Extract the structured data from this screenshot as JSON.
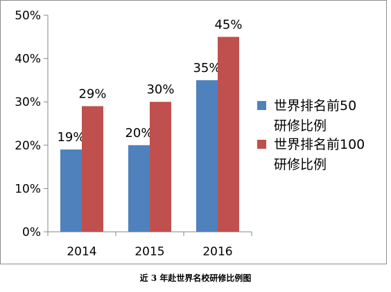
{
  "caption": "近 3 年赴世界名校研修比例图",
  "chart_data": {
    "type": "bar",
    "categories": [
      "2014",
      "2015",
      "2016"
    ],
    "series": [
      {
        "name": "世界排名前50研修比例",
        "legend_lines": [
          "世界排名前50",
          "研修比例"
        ],
        "values": [
          19,
          20,
          35
        ],
        "labels": [
          "19%",
          "20%",
          "35%"
        ],
        "color": "#4f81bd"
      },
      {
        "name": "世界排名前100研修比例",
        "legend_lines": [
          "世界排名前100",
          "研修比例"
        ],
        "values": [
          29,
          30,
          45
        ],
        "labels": [
          "29%",
          "30%",
          "45%"
        ],
        "color": "#c0504d"
      }
    ],
    "ylim": [
      0,
      50
    ],
    "yticks": [
      0,
      10,
      20,
      30,
      40,
      50
    ],
    "ytick_labels": [
      "0%",
      "10%",
      "20%",
      "30%",
      "40%",
      "50%"
    ],
    "grid": false,
    "legend_position": "right"
  }
}
